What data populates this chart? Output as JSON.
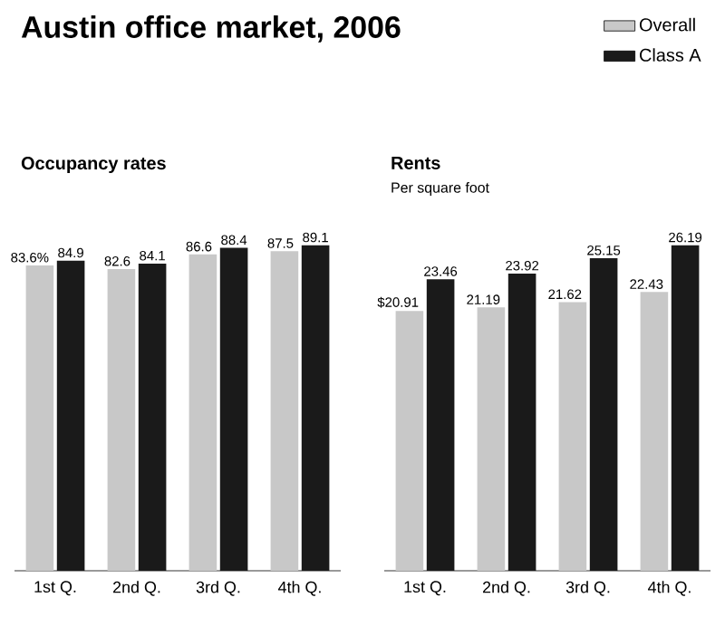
{
  "chart_data": [
    {
      "type": "bar",
      "title": "Austin office market, 2006",
      "subtitle": "Occupancy rates",
      "categories": [
        "1st Q.",
        "2nd Q.",
        "3rd Q.",
        "4th Q."
      ],
      "tick_labels": "x",
      "series": [
        {
          "color": "#c8c8c8",
          "values": [
            83.6,
            82.6,
            86.6,
            87.5
          ],
          "value_labels": [
            "83.6%",
            "82.6",
            "86.6",
            "87.5"
          ]
        },
        {
          "color": "#1a1a1a",
          "values": [
            84.9,
            84.1,
            88.4,
            89.1
          ],
          "value_labels": [
            "84.9",
            "84.1",
            "88.4",
            "89.1"
          ]
        }
      ]
    },
    {
      "type": "bar",
      "title": "Rents",
      "subtitle": "Per square foot",
      "categories": [
        "1st Q.",
        "2nd Q.",
        "3rd Q.",
        "4th Q."
      ],
      "tick_labels": "x",
      "legend": "top right",
      "series": [
        {
          "name": "Overall",
          "color": "#c8c8c8",
          "values": [
            20.91,
            21.19,
            21.62,
            22.43
          ],
          "value_labels": [
            "$20.91",
            "21.19",
            "21.62",
            "22.43"
          ]
        },
        {
          "name": "Class A",
          "color": "#1a1a1a",
          "values": [
            23.46,
            23.92,
            25.15,
            26.19
          ],
          "value_labels": [
            "23.46",
            "23.92",
            "25.15",
            "26.19"
          ]
        }
      ]
    }
  ]
}
